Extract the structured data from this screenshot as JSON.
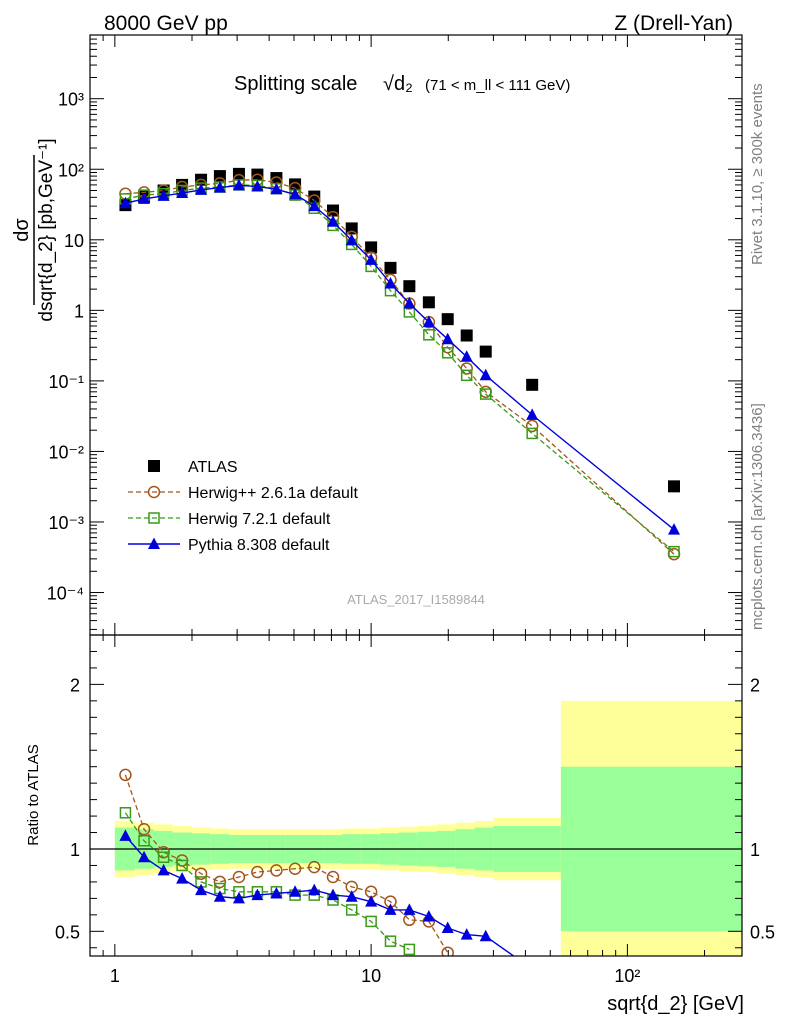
{
  "header": {
    "left": "8000 GeV pp",
    "right": "Z (Drell-Yan)"
  },
  "side_labels": {
    "rivet": "Rivet 3.1.10, ≥ 300k events",
    "mcplots": "mcplots.cern.ch [arXiv:1306.3436]"
  },
  "chart_data": [
    {
      "type": "line",
      "panel": "main",
      "title": "Splitting scale",
      "title_symbol": "√d₂",
      "title_range": "(71 < m_ll < 111 GeV)",
      "watermark": "ATLAS_2017_I1589844",
      "xlabel": "sqrt{d_2} [GeV]",
      "ylabel_num": "dσ",
      "ylabel_den": "dsqrt{d_2} [pb,GeV⁻¹]",
      "xscale": "log",
      "yscale": "log",
      "xlim": [
        0.8,
        280
      ],
      "ylim": [
        2.5e-05,
        8000
      ],
      "x_ticks": [
        {
          "value": 1,
          "label": "1"
        },
        {
          "value": 10,
          "label": "10"
        },
        {
          "value": 100,
          "label": "10²"
        }
      ],
      "y_ticks": [
        {
          "value": 0.0001,
          "label": "10⁻⁴"
        },
        {
          "value": 0.001,
          "label": "10⁻³"
        },
        {
          "value": 0.01,
          "label": "10⁻²"
        },
        {
          "value": 0.1,
          "label": "10⁻¹"
        },
        {
          "value": 1,
          "label": "1"
        },
        {
          "value": 10,
          "label": "10"
        },
        {
          "value": 100,
          "label": "10²"
        },
        {
          "value": 1000,
          "label": "10³"
        }
      ],
      "legend_position": "lower-left",
      "series": [
        {
          "name": "ATLAS",
          "style": "square-filled",
          "color": "#000000",
          "x": [
            1.1,
            1.3,
            1.55,
            1.83,
            2.17,
            2.57,
            3.05,
            3.6,
            4.27,
            5.05,
            6.0,
            7.1,
            8.4,
            10.0,
            11.9,
            14.1,
            16.8,
            19.9,
            23.6,
            28.0,
            42.5,
            152
          ],
          "y": [
            31,
            41,
            50,
            60,
            71,
            80,
            86,
            84,
            75,
            61,
            41,
            26,
            14.5,
            7.8,
            4.0,
            2.2,
            1.3,
            0.75,
            0.44,
            0.26,
            0.088,
            0.0032
          ]
        },
        {
          "name": "Herwig++ 2.6.1a default",
          "style": "circle-open-dashed",
          "color": "#a0561c",
          "x": [
            1.1,
            1.3,
            1.55,
            1.83,
            2.17,
            2.57,
            3.05,
            3.6,
            4.27,
            5.05,
            6.0,
            7.1,
            8.4,
            10.0,
            11.9,
            14.1,
            16.8,
            19.9,
            23.6,
            28.0,
            42.5,
            152
          ],
          "y": [
            45,
            47,
            50,
            56,
            60,
            63,
            70,
            71,
            65,
            54,
            36,
            21,
            11,
            5.6,
            2.7,
            1.25,
            0.68,
            0.3,
            0.15,
            0.07,
            0.023,
            0.00035
          ]
        },
        {
          "name": "Herwig 7.2.1 default",
          "style": "square-open-dashed",
          "color": "#3a9a17",
          "x": [
            1.1,
            1.3,
            1.55,
            1.83,
            2.17,
            2.57,
            3.05,
            3.6,
            4.27,
            5.05,
            6.0,
            7.1,
            8.4,
            10.0,
            11.9,
            14.1,
            16.8,
            19.9,
            23.6,
            28.0,
            42.5,
            152
          ],
          "y": [
            38,
            43,
            45,
            50,
            54,
            56,
            60,
            59,
            53,
            43,
            28,
            16,
            8.6,
            4.2,
            1.9,
            0.95,
            0.45,
            0.25,
            0.12,
            0.065,
            0.018,
            0.00038
          ]
        },
        {
          "name": "Pythia 8.308 default",
          "style": "triangle-filled-solid",
          "color": "#0000dd",
          "x": [
            1.1,
            1.3,
            1.55,
            1.83,
            2.17,
            2.57,
            3.05,
            3.6,
            4.27,
            5.05,
            6.0,
            7.1,
            8.4,
            10.0,
            11.9,
            14.1,
            16.8,
            19.9,
            23.6,
            28.0,
            42.5,
            152
          ],
          "y": [
            33,
            38,
            42,
            46,
            51,
            55,
            59,
            57,
            52,
            44,
            30,
            18,
            9.8,
            5.2,
            2.4,
            1.25,
            0.68,
            0.39,
            0.22,
            0.12,
            0.033,
            0.00078
          ]
        }
      ]
    },
    {
      "type": "line",
      "panel": "ratio",
      "ylabel": "Ratio to ATLAS",
      "xscale": "log",
      "xlim": [
        0.8,
        280
      ],
      "ylim": [
        0.35,
        2.3
      ],
      "y_ticks": [
        {
          "value": 0.5,
          "label": "0.5"
        },
        {
          "value": 1,
          "label": "1"
        },
        {
          "value": 2,
          "label": "2"
        }
      ],
      "band_edges": [
        1.0,
        1.2,
        1.42,
        1.68,
        2.0,
        2.36,
        2.79,
        3.31,
        3.92,
        4.64,
        5.5,
        6.5,
        7.7,
        9.1,
        10.8,
        12.8,
        15.2,
        18.0,
        21.3,
        25.3,
        30.0,
        55.0,
        280
      ],
      "band_inner": [
        0.13,
        0.12,
        0.11,
        0.1,
        0.095,
        0.09,
        0.085,
        0.085,
        0.085,
        0.085,
        0.085,
        0.085,
        0.09,
        0.09,
        0.095,
        0.1,
        0.105,
        0.11,
        0.12,
        0.13,
        0.14,
        0.5
      ],
      "band_outer": [
        0.17,
        0.16,
        0.15,
        0.14,
        0.13,
        0.125,
        0.12,
        0.12,
        0.12,
        0.12,
        0.12,
        0.12,
        0.125,
        0.125,
        0.13,
        0.135,
        0.14,
        0.15,
        0.16,
        0.17,
        0.19,
        0.9
      ],
      "series": [
        {
          "name": "Herwig++ 2.6.1a default",
          "style": "circle-open-dashed",
          "color": "#a0561c",
          "x": [
            1.1,
            1.3,
            1.55,
            1.83,
            2.17,
            2.57,
            3.05,
            3.6,
            4.27,
            5.05,
            6.0,
            7.1,
            8.4,
            10.0,
            11.9,
            14.1,
            16.8,
            19.9
          ],
          "y": [
            1.45,
            1.12,
            0.98,
            0.93,
            0.85,
            0.8,
            0.83,
            0.86,
            0.87,
            0.88,
            0.89,
            0.83,
            0.77,
            0.74,
            0.68,
            0.57,
            0.56,
            0.37
          ]
        },
        {
          "name": "Herwig 7.2.1 default",
          "style": "square-open-dashed",
          "color": "#3a9a17",
          "x": [
            1.1,
            1.3,
            1.55,
            1.83,
            2.17,
            2.57,
            3.05,
            3.6,
            4.27,
            5.05,
            6.0,
            7.1,
            8.4,
            10.0,
            11.9,
            14.1
          ],
          "y": [
            1.22,
            1.05,
            0.95,
            0.9,
            0.8,
            0.76,
            0.74,
            0.74,
            0.74,
            0.72,
            0.72,
            0.69,
            0.63,
            0.56,
            0.44,
            0.39
          ]
        },
        {
          "name": "Pythia 8.308 default",
          "style": "triangle-filled-solid",
          "color": "#0000dd",
          "x": [
            1.1,
            1.3,
            1.55,
            1.83,
            2.17,
            2.57,
            3.05,
            3.6,
            4.27,
            5.05,
            6.0,
            7.1,
            8.4,
            10.0,
            11.9,
            14.1,
            16.8,
            19.9,
            23.6,
            28.0,
            42.5
          ],
          "y": [
            1.08,
            0.95,
            0.87,
            0.82,
            0.75,
            0.71,
            0.7,
            0.72,
            0.73,
            0.74,
            0.75,
            0.72,
            0.71,
            0.68,
            0.63,
            0.63,
            0.59,
            0.52,
            0.48,
            0.47,
            0.27
          ]
        }
      ]
    }
  ]
}
